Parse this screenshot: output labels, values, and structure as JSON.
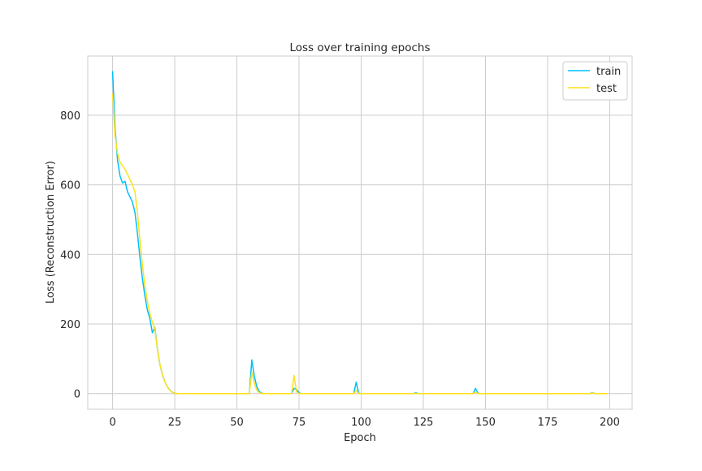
{
  "chart_data": {
    "type": "line",
    "title": "Loss over training epochs",
    "xlabel": "Epoch",
    "ylabel": "Loss (Reconstruction Error)",
    "xlim": [
      -10,
      209
    ],
    "ylim": [
      -45,
      970
    ],
    "xticks": [
      0,
      25,
      50,
      75,
      100,
      125,
      150,
      175,
      200
    ],
    "yticks": [
      0,
      200,
      400,
      600,
      800
    ],
    "xtick_labels": [
      "0",
      "25",
      "50",
      "75",
      "100",
      "125",
      "150",
      "175",
      "200"
    ],
    "ytick_labels": [
      "0",
      "200",
      "400",
      "600",
      "800"
    ],
    "grid": true,
    "legend_position": "top-right",
    "series": [
      {
        "name": "train",
        "color": "#00bfff",
        "points": [
          [
            0,
            925
          ],
          [
            1,
            760
          ],
          [
            2,
            670
          ],
          [
            3,
            625
          ],
          [
            4,
            605
          ],
          [
            5,
            610
          ],
          [
            6,
            580
          ],
          [
            7,
            565
          ],
          [
            8,
            550
          ],
          [
            9,
            520
          ],
          [
            10,
            460
          ],
          [
            11,
            390
          ],
          [
            12,
            330
          ],
          [
            13,
            280
          ],
          [
            14,
            240
          ],
          [
            15,
            215
          ],
          [
            16,
            175
          ],
          [
            17,
            190
          ],
          [
            18,
            130
          ],
          [
            19,
            85
          ],
          [
            20,
            55
          ],
          [
            21,
            35
          ],
          [
            22,
            20
          ],
          [
            23,
            10
          ],
          [
            24,
            4
          ],
          [
            25,
            1
          ],
          [
            26,
            0
          ],
          [
            30,
            0
          ],
          [
            40,
            0
          ],
          [
            50,
            0
          ],
          [
            55,
            0
          ],
          [
            56,
            97
          ],
          [
            57,
            50
          ],
          [
            58,
            20
          ],
          [
            59,
            6
          ],
          [
            60,
            1
          ],
          [
            61,
            0
          ],
          [
            70,
            0
          ],
          [
            72,
            0
          ],
          [
            73,
            15
          ],
          [
            74,
            12
          ],
          [
            75,
            2
          ],
          [
            76,
            0
          ],
          [
            90,
            0
          ],
          [
            97,
            0
          ],
          [
            98,
            33
          ],
          [
            99,
            1
          ],
          [
            100,
            0
          ],
          [
            121,
            0
          ],
          [
            122,
            2
          ],
          [
            123,
            0
          ],
          [
            140,
            0
          ],
          [
            145,
            0
          ],
          [
            146,
            15
          ],
          [
            147,
            1
          ],
          [
            148,
            0
          ],
          [
            170,
            0
          ],
          [
            192,
            0
          ],
          [
            193,
            3
          ],
          [
            194,
            0
          ],
          [
            199,
            0
          ]
        ]
      },
      {
        "name": "test",
        "color": "#ffe119",
        "points": [
          [
            0,
            860
          ],
          [
            1,
            740
          ],
          [
            2,
            690
          ],
          [
            3,
            665
          ],
          [
            4,
            655
          ],
          [
            5,
            645
          ],
          [
            6,
            630
          ],
          [
            7,
            615
          ],
          [
            8,
            600
          ],
          [
            9,
            580
          ],
          [
            10,
            520
          ],
          [
            11,
            440
          ],
          [
            12,
            370
          ],
          [
            13,
            310
          ],
          [
            14,
            265
          ],
          [
            15,
            230
          ],
          [
            16,
            205
          ],
          [
            17,
            185
          ],
          [
            18,
            130
          ],
          [
            19,
            85
          ],
          [
            20,
            55
          ],
          [
            21,
            35
          ],
          [
            22,
            20
          ],
          [
            23,
            10
          ],
          [
            24,
            4
          ],
          [
            25,
            1
          ],
          [
            26,
            0
          ],
          [
            30,
            0
          ],
          [
            40,
            0
          ],
          [
            50,
            0
          ],
          [
            55,
            0
          ],
          [
            56,
            62
          ],
          [
            57,
            30
          ],
          [
            58,
            10
          ],
          [
            59,
            3
          ],
          [
            60,
            0
          ],
          [
            70,
            0
          ],
          [
            72,
            0
          ],
          [
            73,
            52
          ],
          [
            74,
            5
          ],
          [
            75,
            0
          ],
          [
            90,
            0
          ],
          [
            97,
            0
          ],
          [
            98,
            10
          ],
          [
            99,
            0
          ],
          [
            120,
            0
          ],
          [
            140,
            0
          ],
          [
            145,
            0
          ],
          [
            146,
            5
          ],
          [
            147,
            0
          ],
          [
            170,
            0
          ],
          [
            192,
            0
          ],
          [
            193,
            2
          ],
          [
            194,
            0
          ],
          [
            199,
            0
          ]
        ]
      }
    ]
  }
}
